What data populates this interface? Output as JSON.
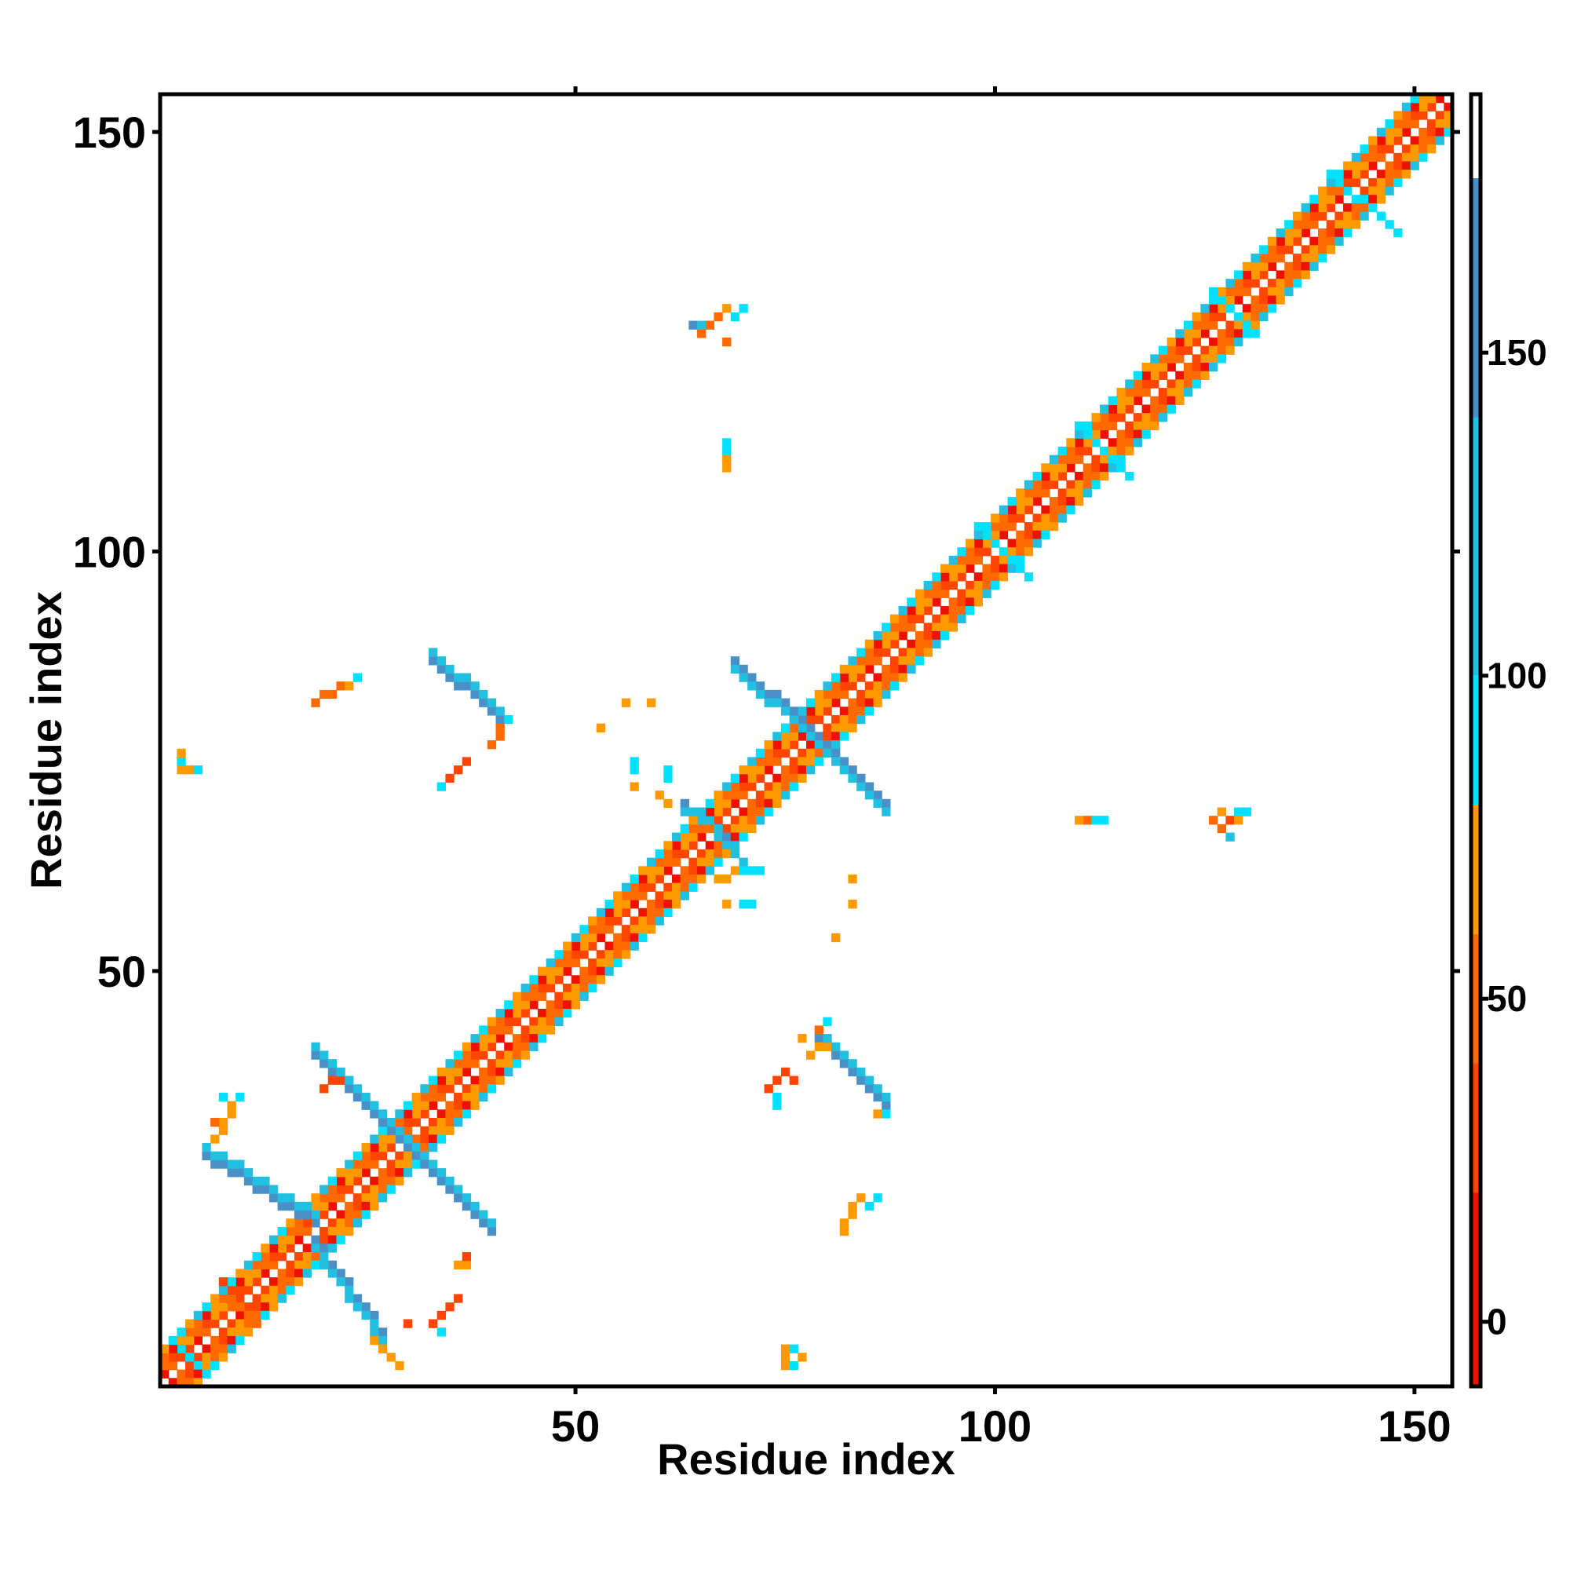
{
  "chart_data": {
    "type": "heatmap",
    "title": "",
    "xlabel": "Residue index",
    "ylabel": "Residue index",
    "xlim": [
      0.5,
      154.5
    ],
    "ylim": [
      0.5,
      154.5
    ],
    "xticks": [
      50,
      100,
      150
    ],
    "yticks": [
      50,
      100,
      150
    ],
    "colorbar": {
      "range": [
        -10,
        190
      ],
      "ticks": [
        0,
        50,
        100,
        150
      ],
      "bands": [
        {
          "from": -10,
          "to": 20,
          "color": "#ee1100"
        },
        {
          "from": 20,
          "to": 40,
          "color": "#ff4500"
        },
        {
          "from": 40,
          "to": 60,
          "color": "#ff6a00"
        },
        {
          "from": 60,
          "to": 80,
          "color": "#ff9900"
        },
        {
          "from": 80,
          "to": 100,
          "color": "#00e0ff"
        },
        {
          "from": 100,
          "to": 140,
          "color": "#22c0e0"
        },
        {
          "from": 140,
          "to": 177,
          "color": "#4a90c8"
        },
        {
          "from": 177,
          "to": 190,
          "color": "#ffffff"
        }
      ]
    },
    "color_levels": {
      "r": "#ee1100",
      "o": "#ff4500",
      "d": "#ff6a00",
      "a": "#ff9900",
      "c": "#00e0ff",
      "s": "#22c0e0",
      "b": "#4a90c8"
    },
    "diagonal": {
      "start": 1,
      "end": 154,
      "bands": [
        {
          "offset": 1,
          "cycle": "ordo"
        },
        {
          "offset": 2,
          "cycle": "adoa"
        },
        {
          "offset": 3,
          "cycle": "ddra"
        },
        {
          "offset": 4,
          "cycle": "cas"
        }
      ]
    },
    "segments": [
      {
        "x": [
          19,
          30
        ],
        "y": [
          40,
          29
        ],
        "level": "b"
      },
      {
        "x": [
          19,
          30
        ],
        "y": [
          41,
          30
        ],
        "level": "s"
      },
      {
        "x": [
          6,
          19
        ],
        "y": [
          28,
          20
        ],
        "level": "b"
      },
      {
        "x": [
          6,
          19
        ],
        "y": [
          29,
          21
        ],
        "level": "s"
      },
      {
        "x": [
          31,
          40
        ],
        "y": [
          28,
          19
        ],
        "level": "b"
      },
      {
        "x": [
          31,
          40
        ],
        "y": [
          29,
          20
        ],
        "level": "s"
      },
      {
        "x": [
          19,
          27
        ],
        "y": [
          18,
          7
        ],
        "level": "b"
      },
      {
        "x": [
          19,
          27
        ],
        "y": [
          17,
          6
        ],
        "level": "s"
      },
      {
        "x": [
          33,
          41
        ],
        "y": [
          87,
          80
        ],
        "level": "b"
      },
      {
        "x": [
          33,
          41
        ],
        "y": [
          88,
          81
        ],
        "level": "s"
      },
      {
        "x": [
          69,
          78
        ],
        "y": [
          87,
          79
        ],
        "level": "b"
      },
      {
        "x": [
          69,
          78
        ],
        "y": [
          86,
          78
        ],
        "level": "s"
      },
      {
        "x": [
          79,
          87
        ],
        "y": [
          78,
          70
        ],
        "level": "b"
      },
      {
        "x": [
          79,
          87
        ],
        "y": [
          77,
          69
        ],
        "level": "s"
      },
      {
        "x": [
          79,
          87
        ],
        "y": [
          42,
          34
        ],
        "level": "b"
      },
      {
        "x": [
          79,
          87
        ],
        "y": [
          43,
          35
        ],
        "level": "s"
      },
      {
        "x": [
          63,
          68
        ],
        "y": [
          70,
          66
        ],
        "level": "b"
      },
      {
        "x": [
          63,
          67
        ],
        "y": [
          69,
          67
        ],
        "level": "s"
      },
      {
        "x": [
          67,
          70
        ],
        "y": [
          66,
          63
        ],
        "level": "s"
      },
      {
        "x": [
          98,
          104
        ],
        "y": [
          103,
          97
        ],
        "level": "c"
      },
      {
        "x": [
          110,
          116
        ],
        "y": [
          115,
          109
        ],
        "level": "c"
      },
      {
        "x": [
          126,
          131
        ],
        "y": [
          131,
          126
        ],
        "level": "c"
      },
      {
        "x": [
          140,
          148
        ],
        "y": [
          145,
          138
        ],
        "level": "c"
      },
      {
        "x": [
          2,
          6
        ],
        "y": [
          6,
          2
        ],
        "level": "c"
      },
      {
        "x": [
          8,
          11
        ],
        "y": [
          13,
          10
        ],
        "level": "o"
      },
      {
        "x": [
          8,
          12
        ],
        "y": [
          11,
          8
        ],
        "level": "d"
      },
      {
        "x": [
          26,
          29
        ],
        "y": [
          6,
          3
        ],
        "level": "a"
      },
      {
        "x": [
          33,
          36
        ],
        "y": [
          8,
          11
        ],
        "level": "o"
      },
      {
        "x": [
          22,
          20
        ],
        "y": [
          37,
          36
        ],
        "level": "o"
      },
      {
        "x": [
          7,
          9
        ],
        "y": [
          30,
          34
        ],
        "level": "a"
      },
      {
        "x": [
          34,
          37
        ],
        "y": [
          72,
          75
        ],
        "level": "o"
      },
      {
        "x": [
          19,
          22
        ],
        "y": [
          82,
          84
        ],
        "level": "d"
      },
      {
        "x": [
          40,
          41
        ],
        "y": [
          77,
          79
        ],
        "level": "d"
      },
      {
        "x": [
          73,
          75
        ],
        "y": [
          36,
          38
        ],
        "level": "o"
      },
      {
        "x": [
          78,
          80
        ],
        "y": [
          40,
          41
        ],
        "level": "a"
      },
      {
        "x": [
          82,
          84
        ],
        "y": [
          20,
          23
        ],
        "level": "a"
      },
      {
        "x": [
          65,
          68
        ],
        "y": [
          126,
          129
        ],
        "level": "d"
      }
    ],
    "cells": [
      {
        "x": 3,
        "y": 74,
        "level": "a"
      },
      {
        "x": 3,
        "y": 75,
        "level": "c"
      },
      {
        "x": 4,
        "y": 74,
        "level": "a"
      },
      {
        "x": 5,
        "y": 74,
        "level": "c"
      },
      {
        "x": 3,
        "y": 76,
        "level": "a"
      },
      {
        "x": 8,
        "y": 35,
        "level": "c"
      },
      {
        "x": 10,
        "y": 35,
        "level": "c"
      },
      {
        "x": 9,
        "y": 33,
        "level": "a"
      },
      {
        "x": 7,
        "y": 32,
        "level": "d"
      },
      {
        "x": 24,
        "y": 85,
        "level": "c"
      },
      {
        "x": 23,
        "y": 84,
        "level": "a"
      },
      {
        "x": 42,
        "y": 80,
        "level": "c"
      },
      {
        "x": 34,
        "y": 72,
        "level": "c"
      },
      {
        "x": 30,
        "y": 8,
        "level": "o"
      },
      {
        "x": 34,
        "y": 7,
        "level": "c"
      },
      {
        "x": 36,
        "y": 15,
        "level": "a"
      },
      {
        "x": 37,
        "y": 15,
        "level": "a"
      },
      {
        "x": 37,
        "y": 16,
        "level": "o"
      },
      {
        "x": 53,
        "y": 79,
        "level": "a"
      },
      {
        "x": 56,
        "y": 82,
        "level": "a"
      },
      {
        "x": 59,
        "y": 82,
        "level": "a"
      },
      {
        "x": 57,
        "y": 74,
        "level": "c"
      },
      {
        "x": 57,
        "y": 75,
        "level": "c"
      },
      {
        "x": 57,
        "y": 72,
        "level": "a"
      },
      {
        "x": 61,
        "y": 74,
        "level": "c"
      },
      {
        "x": 61,
        "y": 73,
        "level": "c"
      },
      {
        "x": 60,
        "y": 71,
        "level": "a"
      },
      {
        "x": 61,
        "y": 70,
        "level": "a"
      },
      {
        "x": 67,
        "y": 61,
        "level": "a"
      },
      {
        "x": 68,
        "y": 61,
        "level": "a"
      },
      {
        "x": 69,
        "y": 62,
        "level": "a"
      },
      {
        "x": 70,
        "y": 62,
        "level": "c"
      },
      {
        "x": 71,
        "y": 62,
        "level": "c"
      },
      {
        "x": 72,
        "y": 62,
        "level": "c"
      },
      {
        "x": 68,
        "y": 58,
        "level": "a"
      },
      {
        "x": 70,
        "y": 58,
        "level": "c"
      },
      {
        "x": 71,
        "y": 58,
        "level": "c"
      },
      {
        "x": 83,
        "y": 58,
        "level": "a"
      },
      {
        "x": 83,
        "y": 61,
        "level": "a"
      },
      {
        "x": 81,
        "y": 54,
        "level": "a"
      },
      {
        "x": 68,
        "y": 110,
        "level": "a"
      },
      {
        "x": 68,
        "y": 111,
        "level": "a"
      },
      {
        "x": 68,
        "y": 112,
        "level": "c"
      },
      {
        "x": 68,
        "y": 113,
        "level": "c"
      },
      {
        "x": 64,
        "y": 127,
        "level": "b"
      },
      {
        "x": 65,
        "y": 127,
        "level": "s"
      },
      {
        "x": 69,
        "y": 128,
        "level": "c"
      },
      {
        "x": 70,
        "y": 129,
        "level": "c"
      },
      {
        "x": 68,
        "y": 125,
        "level": "d"
      },
      {
        "x": 68,
        "y": 129,
        "level": "a"
      },
      {
        "x": 110,
        "y": 68,
        "level": "a"
      },
      {
        "x": 111,
        "y": 68,
        "level": "d"
      },
      {
        "x": 112,
        "y": 68,
        "level": "c"
      },
      {
        "x": 113,
        "y": 68,
        "level": "c"
      },
      {
        "x": 126,
        "y": 68,
        "level": "d"
      },
      {
        "x": 127,
        "y": 69,
        "level": "a"
      },
      {
        "x": 128,
        "y": 68,
        "level": "o"
      },
      {
        "x": 127,
        "y": 67,
        "level": "d"
      },
      {
        "x": 129,
        "y": 69,
        "level": "c"
      },
      {
        "x": 130,
        "y": 69,
        "level": "c"
      },
      {
        "x": 128,
        "y": 66,
        "level": "s"
      },
      {
        "x": 129,
        "y": 68,
        "level": "a"
      },
      {
        "x": 74,
        "y": 35,
        "level": "c"
      },
      {
        "x": 74,
        "y": 34,
        "level": "c"
      },
      {
        "x": 76,
        "y": 37,
        "level": "o"
      },
      {
        "x": 80,
        "y": 44,
        "level": "c"
      },
      {
        "x": 79,
        "y": 43,
        "level": "d"
      },
      {
        "x": 77,
        "y": 42,
        "level": "a"
      },
      {
        "x": 86,
        "y": 33,
        "level": "a"
      },
      {
        "x": 87,
        "y": 33,
        "level": "c"
      },
      {
        "x": 85,
        "y": 22,
        "level": "c"
      },
      {
        "x": 86,
        "y": 23,
        "level": "c"
      },
      {
        "x": 82,
        "y": 19,
        "level": "a"
      },
      {
        "x": 75,
        "y": 4,
        "level": "a"
      },
      {
        "x": 75,
        "y": 3,
        "level": "a"
      },
      {
        "x": 76,
        "y": 3,
        "level": "c"
      },
      {
        "x": 77,
        "y": 4,
        "level": "a"
      },
      {
        "x": 76,
        "y": 5,
        "level": "c"
      },
      {
        "x": 75,
        "y": 5,
        "level": "a"
      }
    ]
  }
}
